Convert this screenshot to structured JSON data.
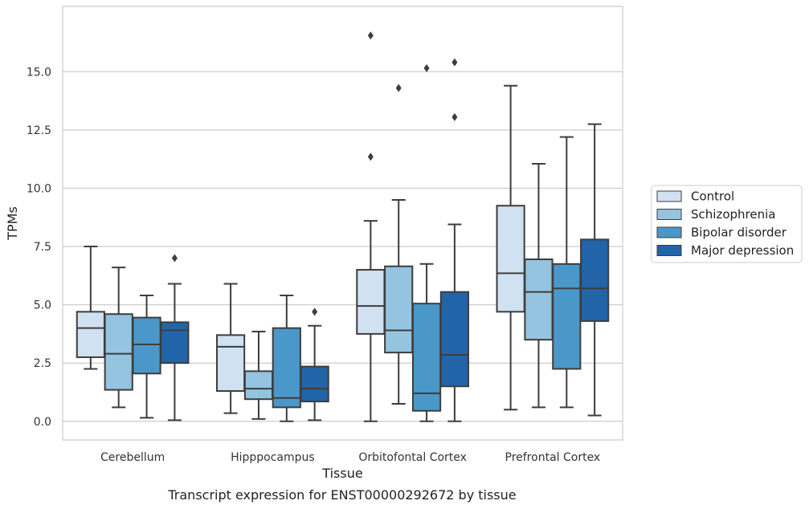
{
  "caption": "Transcript expression for ENST00000292672 by tissue",
  "chart_data": {
    "type": "boxplot",
    "xlabel": "Tissue",
    "ylabel": "TPMs",
    "ylim": [
      -0.8,
      17.8
    ],
    "yticks": [
      0.0,
      2.5,
      5.0,
      7.5,
      10.0,
      12.5,
      15.0
    ],
    "ytick_labels": [
      "0.0",
      "2.5",
      "5.0",
      "7.5",
      "10.0",
      "12.5",
      "15.0"
    ],
    "grid": "horizontal",
    "legend_position": "right-center",
    "categories": [
      "Cerebellum",
      "Hipppocampus",
      "Orbitofontal Cortex",
      "Prefrontal Cortex"
    ],
    "series": [
      {
        "name": "Control",
        "color": "#d0e1f2",
        "boxes": [
          {
            "whislo": 2.25,
            "q1": 2.75,
            "med": 4.0,
            "q3": 4.7,
            "whishi": 7.5,
            "fliers": []
          },
          {
            "whislo": 0.35,
            "q1": 1.3,
            "med": 3.2,
            "q3": 3.7,
            "whishi": 5.9,
            "fliers": []
          },
          {
            "whislo": 0.0,
            "q1": 3.75,
            "med": 4.95,
            "q3": 6.5,
            "whishi": 8.6,
            "fliers": [
              11.35,
              16.55
            ]
          },
          {
            "whislo": 0.5,
            "q1": 4.7,
            "med": 6.35,
            "q3": 9.25,
            "whishi": 14.4,
            "fliers": []
          }
        ]
      },
      {
        "name": "Schizophrenia",
        "color": "#94c4df",
        "boxes": [
          {
            "whislo": 0.6,
            "q1": 1.35,
            "med": 2.9,
            "q3": 4.6,
            "whishi": 6.6,
            "fliers": []
          },
          {
            "whislo": 0.1,
            "q1": 0.95,
            "med": 1.4,
            "q3": 2.15,
            "whishi": 3.85,
            "fliers": []
          },
          {
            "whislo": 0.75,
            "q1": 2.95,
            "med": 3.9,
            "q3": 6.65,
            "whishi": 9.5,
            "fliers": [
              14.3
            ]
          },
          {
            "whislo": 0.6,
            "q1": 3.5,
            "med": 5.55,
            "q3": 6.95,
            "whishi": 11.05,
            "fliers": []
          }
        ]
      },
      {
        "name": "Bipolar disorder",
        "color": "#4a98c9",
        "boxes": [
          {
            "whislo": 0.15,
            "q1": 2.05,
            "med": 3.3,
            "q3": 4.45,
            "whishi": 5.4,
            "fliers": []
          },
          {
            "whislo": 0.0,
            "q1": 0.6,
            "med": 1.0,
            "q3": 4.0,
            "whishi": 5.4,
            "fliers": []
          },
          {
            "whislo": 0.0,
            "q1": 0.45,
            "med": 1.2,
            "q3": 5.05,
            "whishi": 6.75,
            "fliers": [
              15.15
            ]
          },
          {
            "whislo": 0.6,
            "q1": 2.25,
            "med": 5.7,
            "q3": 6.75,
            "whishi": 12.2,
            "fliers": []
          }
        ]
      },
      {
        "name": "Major depression",
        "color": "#2264a8",
        "boxes": [
          {
            "whislo": 0.05,
            "q1": 2.5,
            "med": 3.9,
            "q3": 4.25,
            "whishi": 5.9,
            "fliers": [
              7.0
            ]
          },
          {
            "whislo": 0.05,
            "q1": 0.85,
            "med": 1.4,
            "q3": 2.35,
            "whishi": 4.1,
            "fliers": [
              4.7
            ]
          },
          {
            "whislo": 0.0,
            "q1": 1.5,
            "med": 2.85,
            "q3": 5.55,
            "whishi": 8.45,
            "fliers": [
              13.05,
              15.4
            ]
          },
          {
            "whislo": 0.25,
            "q1": 4.3,
            "med": 5.7,
            "q3": 7.8,
            "whishi": 12.75,
            "fliers": []
          }
        ]
      }
    ]
  }
}
